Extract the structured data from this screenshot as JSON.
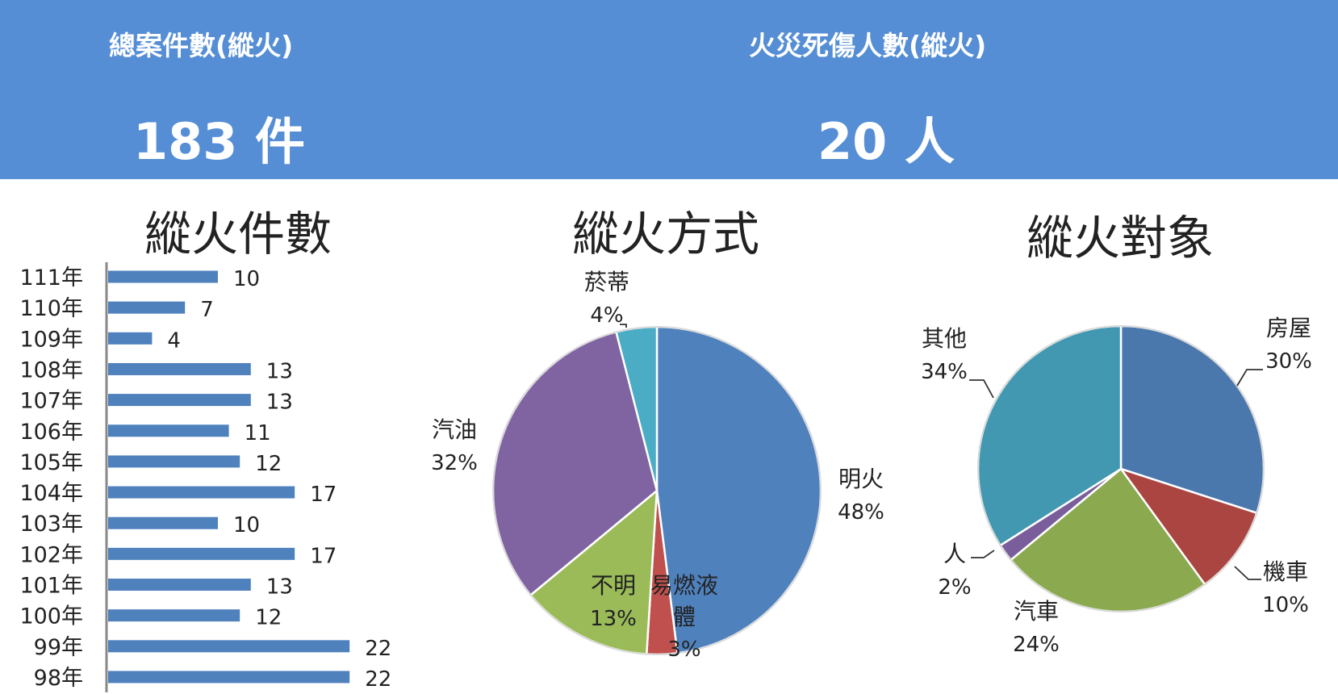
{
  "kpis": {
    "cases": {
      "label": "總案件數(縱火)",
      "value": "183 件"
    },
    "casualties": {
      "label": "火災死傷人數(縱火)",
      "value": "20 人"
    }
  },
  "colors": {
    "banner": "#558ed5",
    "bar": "#4f81bd",
    "axis": "#888888"
  },
  "chart_data": [
    {
      "type": "bar",
      "orientation": "horizontal",
      "title": "縱火件數",
      "categories": [
        "111年",
        "110年",
        "109年",
        "108年",
        "107年",
        "106年",
        "105年",
        "104年",
        "103年",
        "102年",
        "101年",
        "100年",
        "99年",
        "98年"
      ],
      "values": [
        10,
        7,
        4,
        13,
        13,
        11,
        12,
        17,
        10,
        17,
        13,
        12,
        22,
        22
      ],
      "xlim": [
        0,
        22
      ],
      "grid": false,
      "legend": "none"
    },
    {
      "type": "pie",
      "title": "縱火方式",
      "slices": [
        {
          "label": "明火",
          "value": 48,
          "pct": "48%",
          "color": "#4f81bd"
        },
        {
          "label": "易燃液體",
          "value": 3,
          "pct": "3%",
          "color": "#c0504d"
        },
        {
          "label": "不明",
          "value": 13,
          "pct": "13%",
          "color": "#9bbb59"
        },
        {
          "label": "汽油",
          "value": 32,
          "pct": "32%",
          "color": "#8064a2"
        },
        {
          "label": "菸蒂",
          "value": 4,
          "pct": "4%",
          "color": "#4bacc6"
        }
      ]
    },
    {
      "type": "pie",
      "title": "縱火對象",
      "slices": [
        {
          "label": "房屋",
          "value": 30,
          "pct": "30%",
          "color": "#4a78ad"
        },
        {
          "label": "機車",
          "value": 10,
          "pct": "10%",
          "color": "#ab4542"
        },
        {
          "label": "汽車",
          "value": 24,
          "pct": "24%",
          "color": "#8ba94f"
        },
        {
          "label": "人",
          "value": 2,
          "pct": "2%",
          "color": "#7a5e9b"
        },
        {
          "label": "其他",
          "value": 34,
          "pct": "34%",
          "color": "#4298b0"
        }
      ]
    }
  ]
}
